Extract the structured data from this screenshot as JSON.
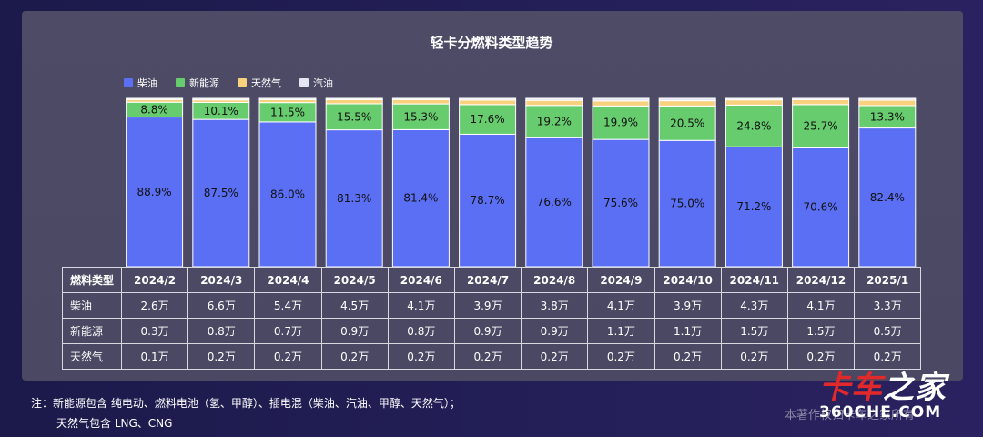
{
  "chart_data": {
    "type": "bar",
    "stacked": true,
    "percent": true,
    "title": "轻卡分燃料类型趋势",
    "categories": [
      "2024/2",
      "2024/3",
      "2024/4",
      "2024/5",
      "2024/6",
      "2024/7",
      "2024/8",
      "2024/9",
      "2024/10",
      "2024/11",
      "2024/12",
      "2025/1"
    ],
    "ylim": [
      0,
      100
    ],
    "legend_position": "top-left",
    "series": [
      {
        "name": "柴油",
        "color": "#5b6ff5",
        "values": [
          88.9,
          87.5,
          86.0,
          81.3,
          81.4,
          78.7,
          76.6,
          75.6,
          75.0,
          71.2,
          70.6,
          82.4
        ],
        "labels": [
          "88.9%",
          "87.5%",
          "86.0%",
          "81.3%",
          "81.4%",
          "78.7%",
          "76.6%",
          "75.6%",
          "75.0%",
          "71.2%",
          "70.6%",
          "82.4%"
        ]
      },
      {
        "name": "新能源",
        "color": "#67cc6e",
        "values": [
          8.8,
          10.1,
          11.5,
          15.5,
          15.3,
          17.6,
          19.2,
          19.9,
          20.5,
          24.8,
          25.7,
          13.3
        ],
        "labels": [
          "8.8%",
          "10.1%",
          "11.5%",
          "15.5%",
          "15.3%",
          "17.6%",
          "19.2%",
          "19.9%",
          "20.5%",
          "24.8%",
          "25.7%",
          "13.3%"
        ]
      },
      {
        "name": "天然气",
        "color": "#f7d17e",
        "values": [
          1.6,
          1.5,
          1.7,
          2.4,
          2.6,
          2.7,
          3.0,
          3.0,
          3.1,
          3.1,
          2.9,
          3.2
        ]
      },
      {
        "name": "汽油",
        "color": "#e4e6f3",
        "values": [
          0.7,
          0.9,
          0.8,
          0.8,
          0.7,
          1.0,
          1.2,
          1.5,
          1.4,
          0.9,
          0.8,
          1.1
        ]
      }
    ]
  },
  "table": {
    "header_label": "燃料类型",
    "months": [
      "2024/2",
      "2024/3",
      "2024/4",
      "2024/5",
      "2024/6",
      "2024/7",
      "2024/8",
      "2024/9",
      "2024/10",
      "2024/11",
      "2024/12",
      "2025/1"
    ],
    "rows": [
      {
        "label": "柴油",
        "cells": [
          "2.6万",
          "6.6万",
          "5.4万",
          "4.5万",
          "4.1万",
          "3.9万",
          "3.8万",
          "4.1万",
          "3.9万",
          "4.3万",
          "4.1万",
          "3.3万"
        ]
      },
      {
        "label": "新能源",
        "cells": [
          "0.3万",
          "0.8万",
          "0.7万",
          "0.9万",
          "0.8万",
          "0.9万",
          "0.9万",
          "1.1万",
          "1.1万",
          "1.5万",
          "1.5万",
          "0.5万"
        ]
      },
      {
        "label": "天然气",
        "cells": [
          "0.1万",
          "0.2万",
          "0.2万",
          "0.2万",
          "0.2万",
          "0.2万",
          "0.2万",
          "0.2万",
          "0.2万",
          "0.2万",
          "0.2万",
          "0.2万"
        ]
      }
    ]
  },
  "note": {
    "line1": "注：新能源包含 纯电动、燃料电池（氢、甲醇）、插电混（柴油、汽油、甲醇、天然气）；",
    "line2": "天然气包含 LNG、CNG"
  },
  "copyright": "本著作权归卡车之家所有",
  "logo": {
    "main_a": "卡车",
    "main_b": "之家",
    "sub": "360CHE.COM"
  }
}
